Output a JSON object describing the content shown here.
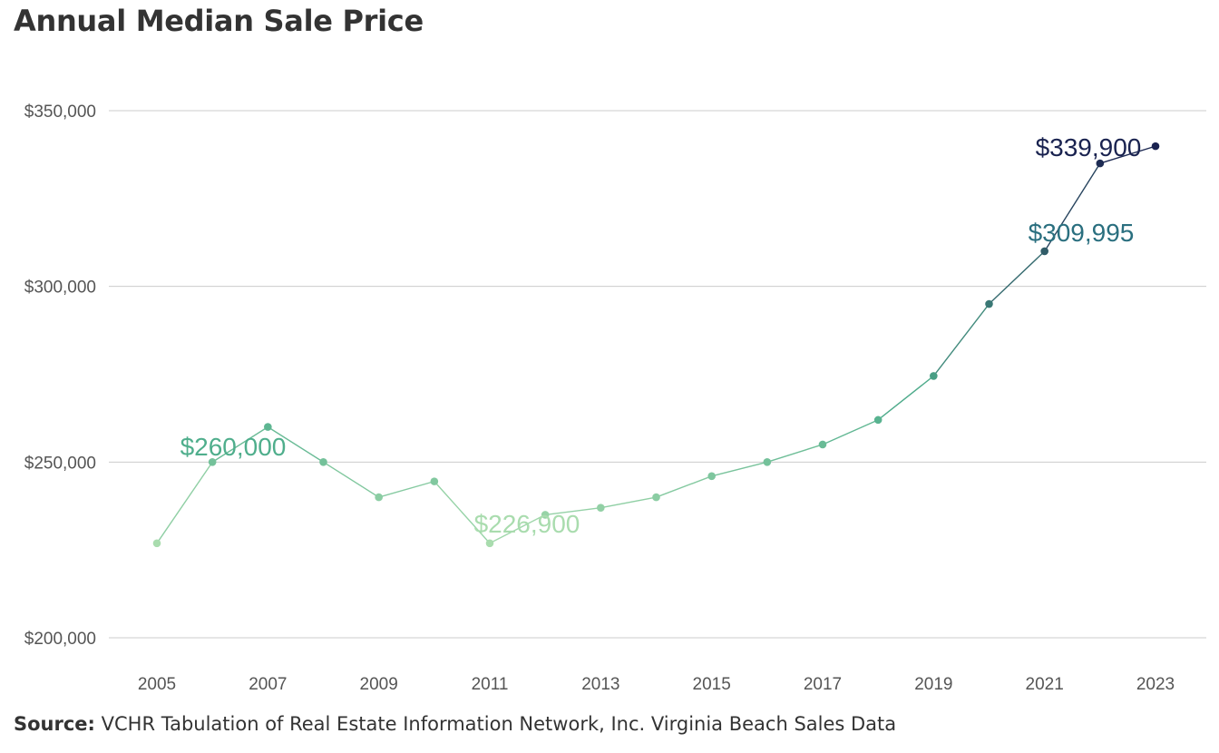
{
  "title": "Annual Median Sale Price",
  "source": {
    "label": "Source:",
    "text": "VCHR Tabulation of Real Estate Information Network, Inc. Virginia Beach Sales Data"
  },
  "chart_data": {
    "type": "line",
    "title": "Annual Median Sale Price",
    "xlabel": "",
    "ylabel": "",
    "x": [
      2005,
      2006,
      2007,
      2008,
      2009,
      2010,
      2011,
      2012,
      2013,
      2014,
      2015,
      2016,
      2017,
      2018,
      2019,
      2020,
      2021,
      2022,
      2023
    ],
    "values": [
      226900,
      250000,
      260000,
      250000,
      240000,
      244500,
      226900,
      235000,
      237000,
      240000,
      246000,
      250000,
      255000,
      262000,
      274500,
      295000,
      309995,
      335000,
      339900
    ],
    "ylim": [
      190000,
      355000
    ],
    "yticks": [
      200000,
      250000,
      300000,
      350000
    ],
    "ytick_labels": [
      "$200,000",
      "$250,000",
      "$300,000",
      "$350,000"
    ],
    "xticks": [
      2005,
      2007,
      2009,
      2011,
      2013,
      2015,
      2017,
      2019,
      2021,
      2023
    ],
    "xtick_labels": [
      "2005",
      "2007",
      "2009",
      "2011",
      "2013",
      "2015",
      "2017",
      "2019",
      "2021",
      "2023"
    ],
    "annotations": [
      {
        "x": 2007,
        "text": "$260,000",
        "color": "#4fae8c"
      },
      {
        "x": 2011,
        "text": "$226,900",
        "color": "#a9dcae"
      },
      {
        "x": 2021,
        "text": "$309,995",
        "color": "#2a6f7f"
      },
      {
        "x": 2023,
        "text": "$339,900",
        "color": "#1a2350"
      }
    ],
    "color_scale": {
      "low": "#a9dcae",
      "mid": "#4fae8c",
      "high": "#1a2350",
      "low_value": 226900,
      "high_value": 339900
    },
    "grid": true,
    "legend": "none"
  }
}
